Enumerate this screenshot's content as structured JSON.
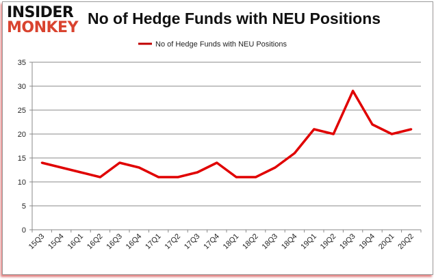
{
  "logo": {
    "line1": "INSIDER",
    "line2": "MONKEY"
  },
  "chart_data": {
    "type": "line",
    "title": "No of Hedge Funds with NEU Positions",
    "categories": [
      "15Q3",
      "15Q4",
      "16Q1",
      "16Q2",
      "16Q3",
      "16Q4",
      "17Q1",
      "17Q2",
      "17Q3",
      "17Q4",
      "18Q1",
      "18Q2",
      "18Q3",
      "18Q4",
      "19Q1",
      "19Q2",
      "19Q3",
      "19Q4",
      "20Q1",
      "20Q2"
    ],
    "series": [
      {
        "name": "No of Hedge Funds with NEU  Positions",
        "color": "#e00000",
        "values": [
          14,
          13,
          12,
          11,
          14,
          13,
          11,
          11,
          12,
          14,
          11,
          11,
          13,
          16,
          21,
          20,
          29,
          22,
          20,
          21
        ]
      }
    ],
    "ylim": [
      0,
      35
    ],
    "yticks": [
      0,
      5,
      10,
      15,
      20,
      25,
      30,
      35
    ],
    "grid": true,
    "legend": "top-center",
    "xlabel": "",
    "ylabel": ""
  }
}
